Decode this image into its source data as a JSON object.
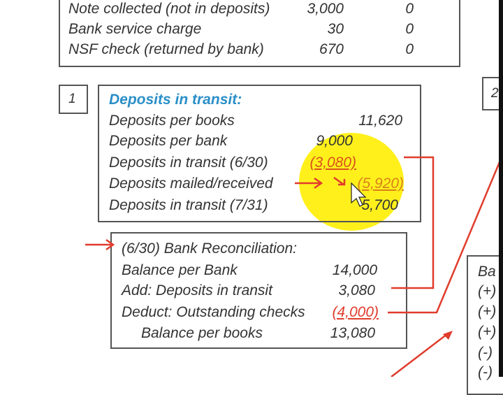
{
  "top_table": {
    "rows": [
      {
        "label": "Note collected (not in deposits)",
        "a": "3,000",
        "b": "0"
      },
      {
        "label": "Bank service charge",
        "a": "30",
        "b": "0"
      },
      {
        "label": "NSF check (returned by bank)",
        "a": "670",
        "b": "0"
      }
    ]
  },
  "step1": {
    "number": "1",
    "title": "Deposits in transit:",
    "rows": [
      {
        "label": "Deposits per books",
        "value": "11,620"
      },
      {
        "label": "Deposits per bank",
        "value": "9,000"
      },
      {
        "label": "Deposits in transit (6/30)",
        "value": "(3,080)"
      },
      {
        "label": "Deposits mailed/received",
        "value": "(5,920)"
      },
      {
        "label": "Deposits in transit (7/31)",
        "value": "5,700"
      }
    ]
  },
  "step2": {
    "number": "2"
  },
  "recon": {
    "title": "(6/30) Bank Reconciliation:",
    "rows": [
      {
        "label": "Balance per Bank",
        "value": "14,000"
      },
      {
        "label": "Add: Deposits in transit",
        "value": "3,080"
      },
      {
        "label": "Deduct: Outstanding checks",
        "value": "(4,000)"
      },
      {
        "label": "Balance per books",
        "value": "13,080"
      }
    ]
  },
  "right_box": {
    "lines": [
      "Ba",
      "(+)",
      "(+)",
      "(+)",
      "(-)",
      "(-)"
    ]
  },
  "colors": {
    "title_blue": "#2a8fc8",
    "annotation_red": "#e03c2c",
    "highlight_yellow": "#ffef10"
  }
}
